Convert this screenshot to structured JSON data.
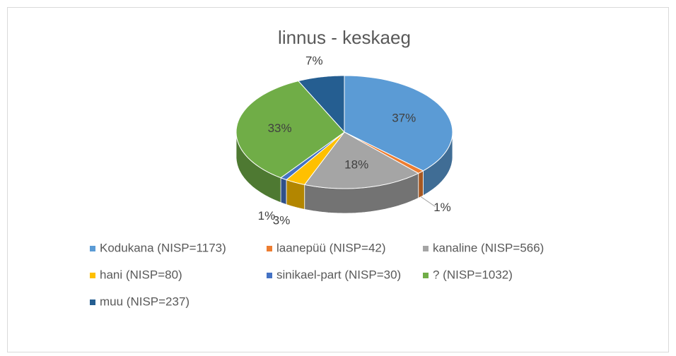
{
  "chart_data": {
    "type": "pie",
    "title": "linnus - keskaeg",
    "categories": [
      "Kodukana (NISP=1173)",
      "laanepüü (NISP=42)",
      "kanaline (NISP=566)",
      "hani (NISP=80)",
      "sinikael-part (NISP=30)",
      "? (NISP=1032)",
      "muu (NISP=237)"
    ],
    "values": [
      37,
      1,
      18,
      3,
      1,
      33,
      7
    ],
    "value_labels": [
      "37%",
      "1%",
      "18%",
      "3%",
      "1%",
      "33%",
      "7%"
    ],
    "colors": [
      "#5b9bd5",
      "#ed7d31",
      "#a5a5a5",
      "#ffc000",
      "#4472c4",
      "#70ad47",
      "#255e91"
    ],
    "legend": "bottom"
  }
}
